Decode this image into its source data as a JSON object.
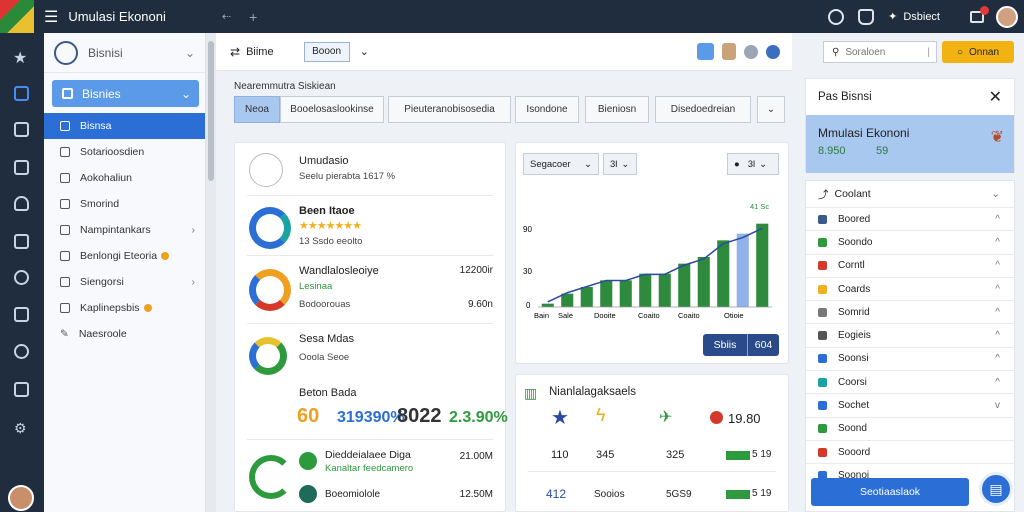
{
  "topbar": {
    "title": "Umulasi Ekononi",
    "back_icon": "arrow-left-icon",
    "add_icon": "plus-icon",
    "user": "Dsbiect"
  },
  "sidebar": {
    "header": "Bisnisi",
    "selected": "Bisnies",
    "items": [
      {
        "label": "Bisnsa",
        "active": true
      },
      {
        "label": "Sotarioosdien"
      },
      {
        "label": "Aokohaliun"
      },
      {
        "label": "Smorind"
      },
      {
        "label": "Nampintankars",
        "chevron": true
      },
      {
        "label": "Benlongi Eteoria",
        "badge": true
      },
      {
        "label": "Siengorsi",
        "chevron": true
      },
      {
        "label": "Kaplinepsbis",
        "badge": true
      },
      {
        "label": "Naesroole"
      }
    ]
  },
  "mainbar": {
    "label": "Biime",
    "box": "Booon"
  },
  "breadcrumb": "Nearemmutra Siskiean",
  "tabs": [
    "Neoa",
    "Booelosaslookinse",
    "Pieuteranobisosedia",
    "Isondone",
    "Bieniosn",
    "Disedoedreian"
  ],
  "card1": {
    "title": "Umudasio",
    "subtitle": "Seelu pierabta 1617 %",
    "rows": [
      {
        "title": "Been Itaoe",
        "rating": "★★★★★★★",
        "sub": "13 Ssdo eeolto"
      },
      {
        "title": "Wandlalosleoiye",
        "sub": "Bodoorouas",
        "extra": "Lesinaa",
        "value1": "12200ir",
        "value2": "9.60n"
      },
      {
        "title": "Sesa Mdas",
        "sub": "Ooola Seoe"
      },
      {
        "title": "Beton Bada"
      },
      {
        "title": "Dieddeialaee Diga",
        "sub": "Kanaltar feedcamero",
        "value": "21.00M"
      },
      {
        "title": "Boeomiolole",
        "value": "12.50M"
      }
    ],
    "kpis": [
      "60",
      "319390%",
      "8022",
      "2.3.90%"
    ]
  },
  "chart_card": {
    "dropdown": "Segacoer",
    "select": "3l",
    "filter": "3l",
    "top_label": "41 Sc",
    "yticks": [
      "90",
      "30",
      "0"
    ],
    "xticks": [
      "Bain",
      "Sale",
      "Dooite",
      "Coaito",
      "Coaito",
      "Otioie"
    ],
    "buttons": [
      "Sbiis",
      "604"
    ]
  },
  "chart_data": {
    "type": "bar",
    "series": [
      {
        "values": [
          1,
          4,
          6,
          8,
          8,
          10,
          10,
          13,
          15,
          20,
          22,
          25
        ]
      }
    ],
    "highlight_index": 10,
    "trend": true,
    "ylim": [
      0,
      30
    ],
    "colors": {
      "bar": "#2e8b3e",
      "highlight": "#8fb3ea",
      "trend": "#2b4aa0"
    }
  },
  "bottom_card": {
    "title": "Nianlalagaksaels",
    "cols": [
      {
        "icon": "star-icon",
        "v1": "110",
        "v2": "412"
      },
      {
        "icon": "lightning-icon",
        "v1": "345",
        "v2": "Sooios"
      },
      {
        "icon": "bird-icon",
        "v1": "325",
        "v2": "5GS9"
      },
      {
        "icon": "alert-icon",
        "v1": "19.80",
        "v2": "5 19",
        "v3": "5 19"
      }
    ]
  },
  "right": {
    "search_placeholder": "Soraloen",
    "search_button": "Onnan",
    "panel_title": "Pas Bisnsi",
    "hero_title": "Mmulasi Ekononi",
    "hero_sub": "8.950",
    "hero_sub2": "59",
    "list_header": "Coolant",
    "list": [
      {
        "label": "Boored",
        "color": "#3a5a8a",
        "arr": "^"
      },
      {
        "label": "Soondo",
        "color": "#2e9a3e",
        "arr": "^"
      },
      {
        "label": "Corntl",
        "color": "#d33a2a",
        "arr": "^"
      },
      {
        "label": "Coards",
        "color": "#f0b020",
        "arr": "^"
      },
      {
        "label": "Somrid",
        "color": "#777777",
        "arr": "^"
      },
      {
        "label": "Eogieis",
        "color": "#555555",
        "arr": "^"
      },
      {
        "label": "Soonsi",
        "color": "#2b6fd6",
        "arr": "^"
      },
      {
        "label": "Coorsi",
        "color": "#1aa3a3",
        "arr": "^"
      },
      {
        "label": "Sochet",
        "color": "#2b6fd6",
        "arr": "v"
      },
      {
        "label": "Soond",
        "color": "#2e9a3e",
        "arr": ""
      },
      {
        "label": "Sooord",
        "color": "#d33a2a",
        "arr": ""
      },
      {
        "label": "Soonoi",
        "color": "#2b6fd6",
        "arr": ""
      }
    ],
    "footer_button": "Seotiaaslaok"
  }
}
